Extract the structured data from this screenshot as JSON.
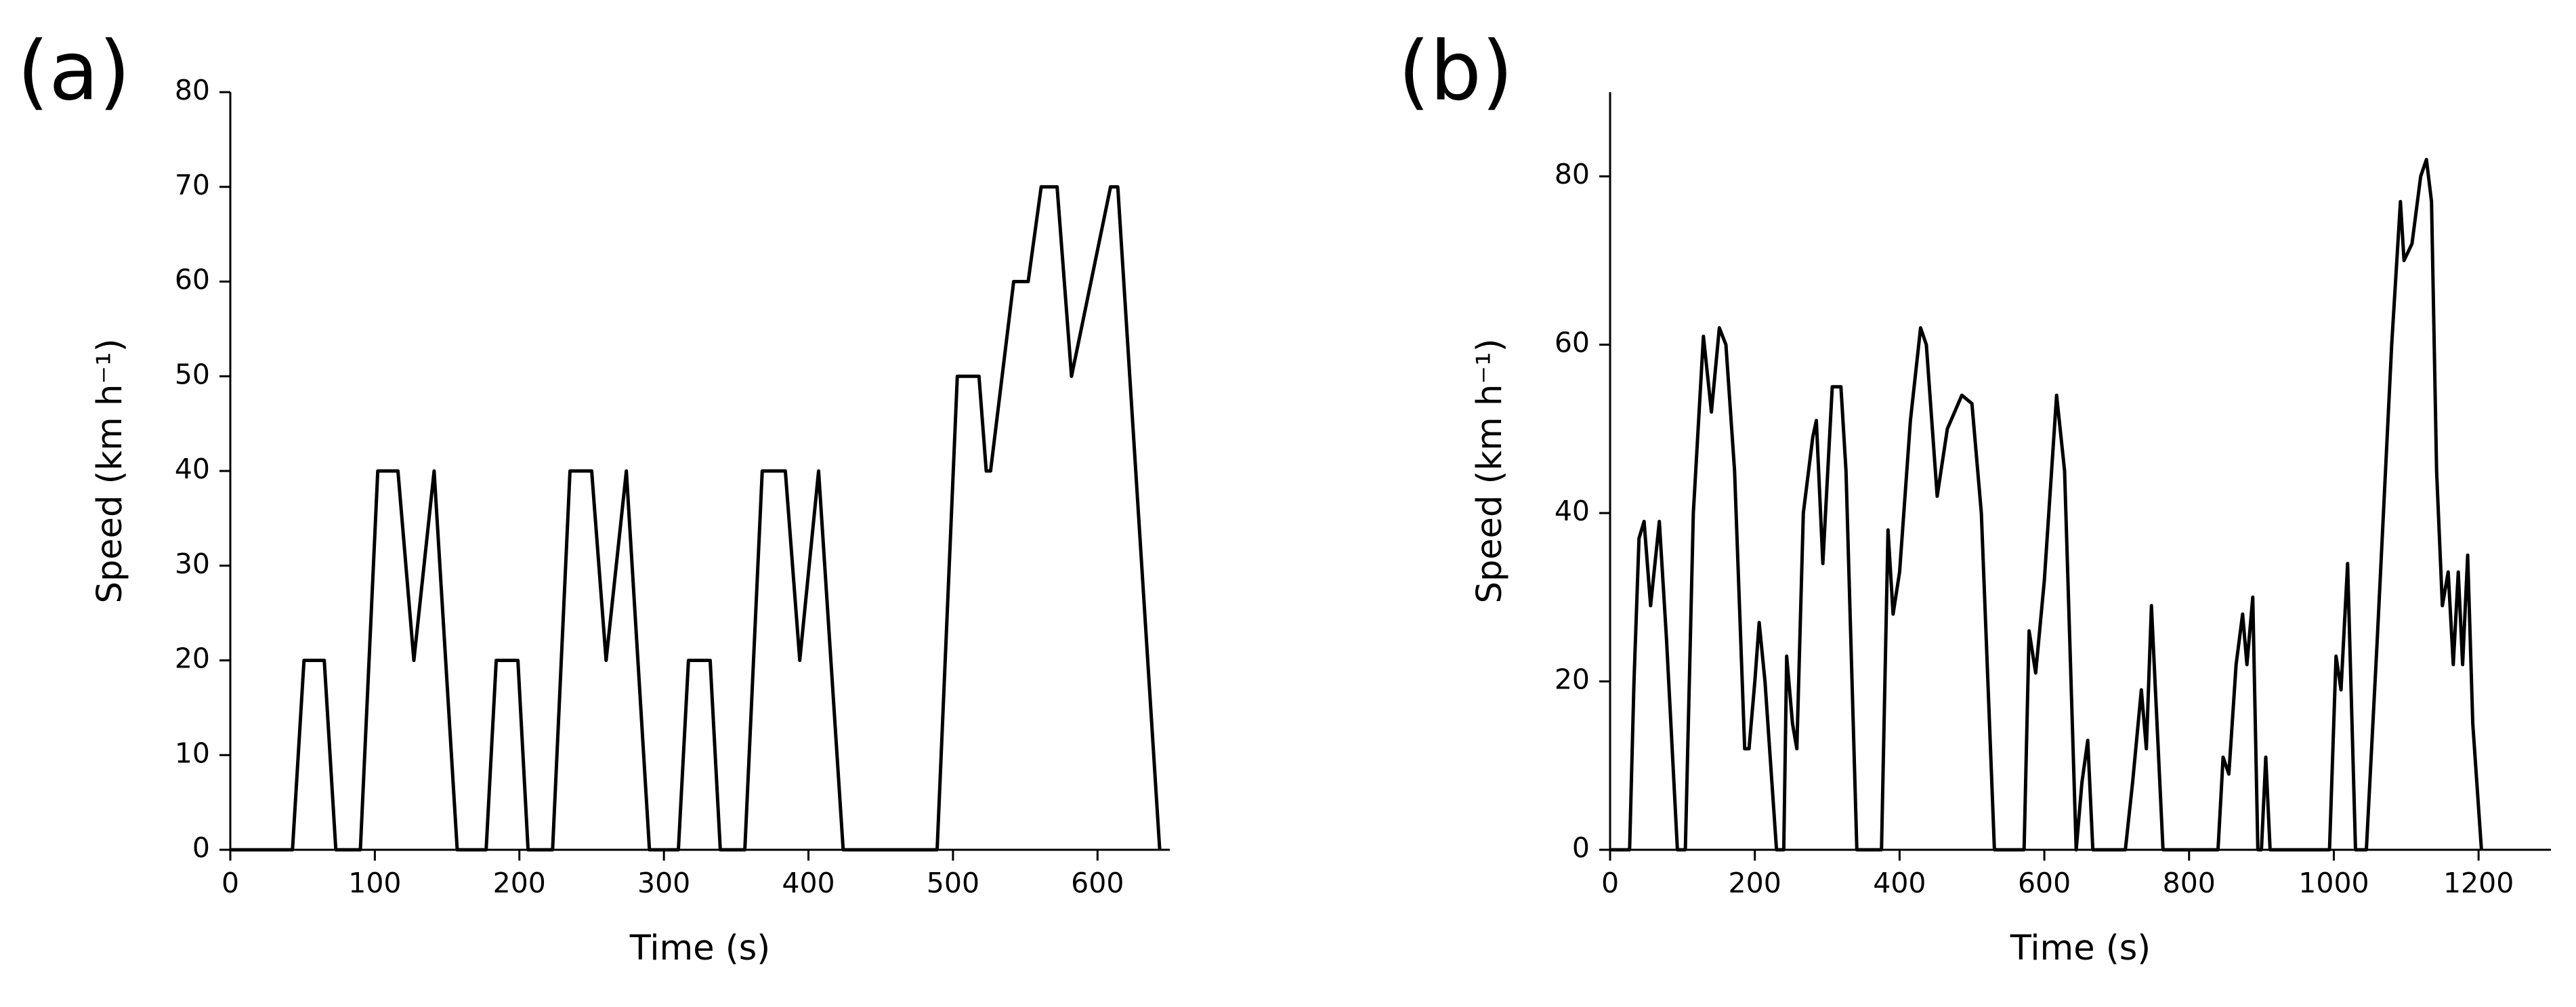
{
  "chart_data": [
    {
      "type": "line",
      "title": "(a)",
      "x_label": "Time (s)",
      "y_label": "Speed (km h⁻¹)",
      "color": "#000000",
      "xlim": [
        0,
        650
      ],
      "xticks": [
        0,
        100,
        200,
        300,
        400,
        500,
        600
      ],
      "ylim": [
        0,
        80
      ],
      "yticks": [
        0,
        10,
        20,
        30,
        40,
        50,
        60,
        70,
        80
      ],
      "x": [
        0,
        43,
        51,
        65,
        73,
        90,
        102,
        116,
        127,
        141,
        157,
        177,
        184,
        199,
        206,
        223,
        235,
        250,
        260,
        274,
        290,
        310,
        317,
        332,
        339,
        356,
        368,
        384,
        394,
        407,
        424,
        489,
        503,
        518,
        523,
        526,
        542,
        552,
        561,
        572,
        582,
        609,
        614,
        643
      ],
      "values": [
        0,
        0,
        20,
        20,
        0,
        0,
        40,
        40,
        20,
        40,
        0,
        0,
        20,
        20,
        0,
        0,
        40,
        40,
        20,
        40,
        0,
        0,
        20,
        20,
        0,
        0,
        40,
        40,
        20,
        40,
        0,
        0,
        50,
        50,
        40,
        40,
        60,
        60,
        70,
        70,
        50,
        70,
        70,
        0
      ]
    },
    {
      "type": "line",
      "title": "(b)",
      "x_label": "Time (s)",
      "y_label": "Speed (km h⁻¹)",
      "color": "#000000",
      "xlim": [
        0,
        1300
      ],
      "xticks": [
        0,
        200,
        400,
        600,
        800,
        1000,
        1200
      ],
      "ylim": [
        0,
        90
      ],
      "yticks": [
        0,
        20,
        40,
        60,
        80
      ],
      "x": [
        0,
        27,
        33,
        40,
        47,
        56,
        68,
        78,
        93,
        104,
        115,
        129,
        140,
        151,
        160,
        172,
        186,
        192,
        200,
        206,
        214,
        230,
        240,
        244,
        252,
        258,
        267,
        280,
        285,
        294,
        307,
        319,
        326,
        341,
        375,
        384,
        391,
        400,
        415,
        429,
        437,
        452,
        466,
        486,
        500,
        513,
        531,
        572,
        579,
        588,
        600,
        617,
        628,
        644,
        652,
        660,
        667,
        712,
        722,
        734,
        741,
        748,
        764,
        840,
        847,
        855,
        865,
        874,
        880,
        888,
        895,
        900,
        906,
        912,
        994,
        1003,
        1010,
        1019,
        1030,
        1045,
        1060,
        1080,
        1092,
        1097,
        1108,
        1120,
        1128,
        1135,
        1142,
        1150,
        1158,
        1165,
        1172,
        1178,
        1185,
        1192,
        1204
      ],
      "values": [
        0,
        0,
        20,
        37,
        39,
        29,
        39,
        25,
        0,
        0,
        40,
        61,
        52,
        62,
        60,
        45,
        12,
        12,
        20,
        27,
        20,
        0,
        0,
        23,
        15,
        12,
        40,
        49,
        51,
        34,
        55,
        55,
        45,
        0,
        0,
        38,
        28,
        33,
        51,
        62,
        60,
        42,
        50,
        54,
        53,
        40,
        0,
        0,
        26,
        21,
        32,
        54,
        45,
        0,
        8,
        13,
        0,
        0,
        8,
        19,
        12,
        29,
        0,
        0,
        11,
        9,
        22,
        28,
        22,
        30,
        0,
        0,
        11,
        0,
        0,
        23,
        19,
        34,
        0,
        0,
        25,
        60,
        77,
        70,
        72,
        80,
        82,
        77,
        45,
        29,
        33,
        22,
        33,
        22,
        35,
        15,
        0
      ]
    }
  ]
}
